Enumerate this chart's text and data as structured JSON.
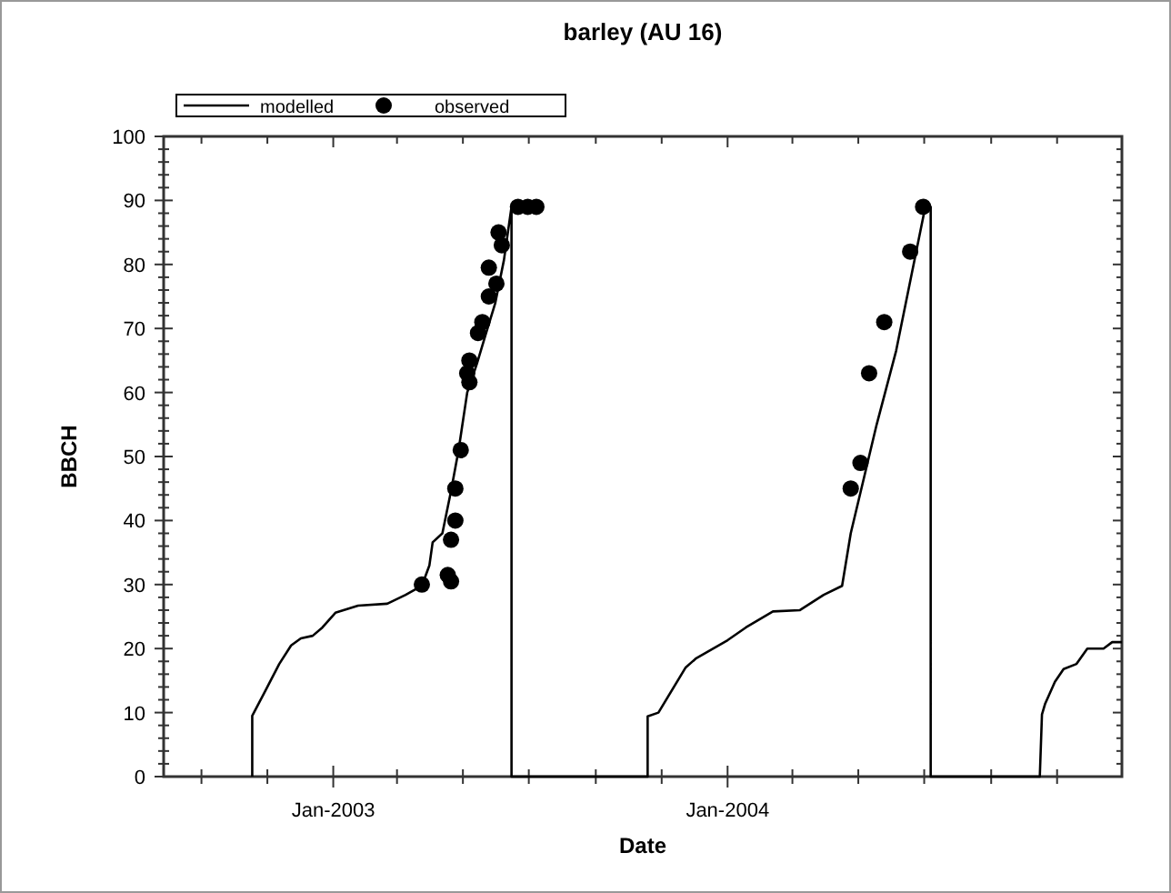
{
  "chart_data": {
    "type": "line",
    "title": "barley (AU 16)",
    "xlabel": "Date",
    "ylabel": "BBCH",
    "xlim": [
      "2002-07-28",
      "2004-12-31"
    ],
    "xticks": [
      {
        "value": "2002-09-01",
        "label": null
      },
      {
        "value": "2002-11-01",
        "label": null
      },
      {
        "value": "2003-01-01",
        "label": "Jan-2003"
      },
      {
        "value": "2003-03-01",
        "label": null
      },
      {
        "value": "2003-05-01",
        "label": null
      },
      {
        "value": "2003-07-01",
        "label": null
      },
      {
        "value": "2003-09-01",
        "label": null
      },
      {
        "value": "2003-11-01",
        "label": null
      },
      {
        "value": "2004-01-01",
        "label": "Jan-2004"
      },
      {
        "value": "2004-03-01",
        "label": null
      },
      {
        "value": "2004-05-01",
        "label": null
      },
      {
        "value": "2004-07-01",
        "label": null
      },
      {
        "value": "2004-09-01",
        "label": null
      },
      {
        "value": "2004-11-01",
        "label": null
      }
    ],
    "ylim": [
      0,
      100
    ],
    "yticks": [
      0,
      10,
      20,
      30,
      40,
      50,
      60,
      70,
      80,
      90,
      100
    ],
    "grid": false,
    "legend": "top left",
    "series": [
      {
        "name": "modelled",
        "color": "#000000",
        "marker": "none",
        "line_style": "solid",
        "x": [
          "2002-10-18",
          "2002-10-18",
          "2002-11-01",
          "2002-11-12",
          "2002-11-23",
          "2002-12-02",
          "2002-12-13",
          "2002-12-22",
          "2003-01-03",
          "2003-01-24",
          "2003-02-20",
          "2003-03-09",
          "2003-03-24",
          "2003-03-31",
          "2003-04-03",
          "2003-04-12",
          "2003-04-20",
          "2003-04-27",
          "2003-05-05",
          "2003-05-14",
          "2003-05-22",
          "2003-05-31",
          "2003-06-08",
          "2003-06-15",
          "2003-06-15",
          "2003-10-19",
          "2003-10-19",
          "2003-10-29",
          "2003-11-23",
          "2003-12-03",
          "2004-01-01",
          "2004-01-18",
          "2004-02-12",
          "2004-03-08",
          "2004-03-30",
          "2004-04-16",
          "2004-04-24",
          "2004-05-18",
          "2004-06-05",
          "2004-07-02",
          "2004-07-07",
          "2004-07-07",
          "2004-10-16",
          "2004-10-18",
          "2004-10-21",
          "2004-10-30",
          "2004-11-07",
          "2004-11-19",
          "2004-11-29",
          "2004-12-14",
          "2004-12-22",
          "2004-12-31"
        ],
        "values": [
          0,
          9.5,
          14,
          17.6,
          20.5,
          21.6,
          22,
          23.3,
          25.6,
          26.7,
          27,
          28.4,
          29.8,
          33,
          36.6,
          38,
          44.6,
          51,
          60,
          64.5,
          69,
          74,
          80.7,
          89,
          0,
          0,
          9.4,
          10,
          17,
          18.5,
          21.3,
          23.3,
          25.8,
          26,
          28.4,
          29.8,
          38,
          55,
          66.5,
          89,
          89,
          0,
          0,
          9.7,
          11.4,
          14.8,
          16.8,
          17.6,
          20,
          20,
          21,
          21
        ]
      },
      {
        "name": "observed",
        "type": "scatter",
        "color": "#000000",
        "marker": "circle",
        "x": [
          "2003-03-24",
          "2003-04-17",
          "2003-04-20",
          "2003-04-20",
          "2003-04-24",
          "2003-04-24",
          "2003-04-29",
          "2003-05-07",
          "2003-05-05",
          "2003-05-07",
          "2003-05-15",
          "2003-05-19",
          "2003-05-25",
          "2003-06-01",
          "2003-05-25",
          "2003-06-06",
          "2003-06-03",
          "2003-06-21",
          "2003-06-30",
          "2003-07-08",
          "2004-04-24",
          "2004-05-03",
          "2004-05-11",
          "2004-05-25",
          "2004-06-18",
          "2004-06-30"
        ],
        "values": [
          30,
          31.5,
          30.5,
          37,
          40,
          45,
          51,
          61.6,
          63,
          65,
          69.3,
          71,
          75,
          77,
          79.5,
          83,
          85,
          89,
          89,
          89,
          45,
          49,
          63,
          71,
          82,
          89
        ]
      }
    ]
  }
}
